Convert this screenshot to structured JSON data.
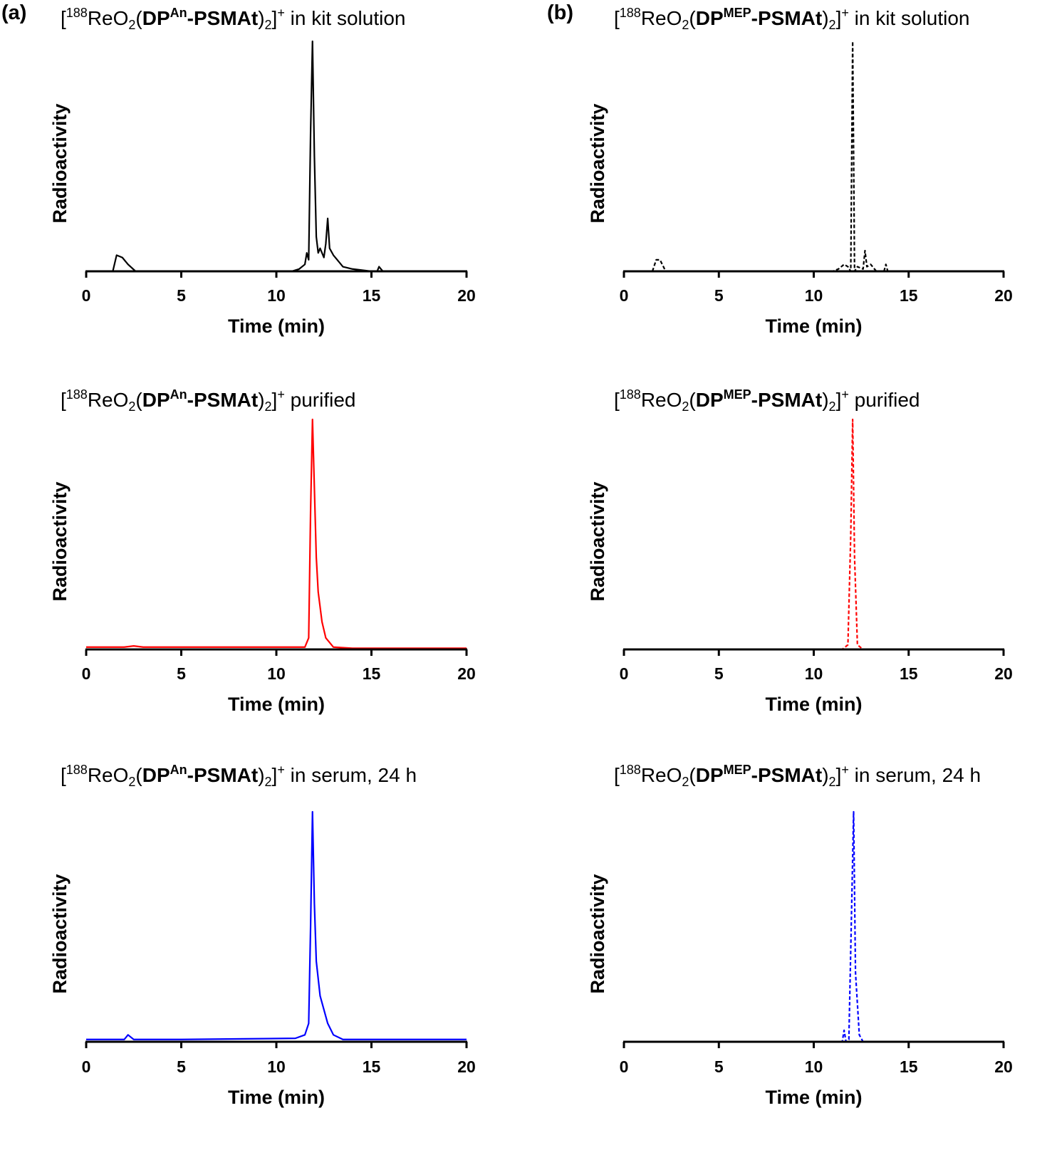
{
  "figure": {
    "panel_labels": [
      "(a)",
      "(b)"
    ]
  },
  "chart_data": [
    {
      "type": "line",
      "title": [
        "[",
        "188",
        "ReO",
        "2",
        "(",
        "DP",
        "An",
        "-PSMAt",
        ")",
        "2",
        "]",
        "+",
        " in kit solution"
      ],
      "x_label": "Time (min)",
      "y_label": "Radioactivity",
      "xlim": [
        0,
        20
      ],
      "xticks": [
        0,
        5,
        10,
        15,
        20
      ],
      "ylim": [
        0,
        100
      ],
      "color": "#000000",
      "line_style": "solid",
      "x": [
        0,
        1.4,
        1.6,
        1.9,
        2.2,
        2.6,
        3,
        10.8,
        11.2,
        11.5,
        11.6,
        11.7,
        11.8,
        11.9,
        12.0,
        12.1,
        12.2,
        12.3,
        12.5,
        12.6,
        12.7,
        12.8,
        13.0,
        13.2,
        13.5,
        14,
        14.5,
        15,
        15.3,
        15.4,
        15.6,
        16,
        20
      ],
      "values": [
        0,
        0,
        7,
        6,
        3,
        0,
        0,
        0,
        1,
        3,
        8,
        5,
        60,
        100,
        50,
        15,
        8,
        10,
        6,
        12,
        23,
        10,
        7,
        5,
        2,
        1,
        0.5,
        0,
        0,
        2,
        0,
        0,
        0
      ]
    },
    {
      "type": "line",
      "title": [
        "[",
        "188",
        "ReO",
        "2",
        "(",
        "DP",
        "An",
        "-PSMAt",
        ")",
        "2",
        "]",
        "+",
        " purified"
      ],
      "x_label": "Time (min)",
      "y_label": "Radioactivity",
      "xlim": [
        0,
        20
      ],
      "xticks": [
        0,
        5,
        10,
        15,
        20
      ],
      "ylim": [
        0,
        100
      ],
      "color": "#ff0000",
      "line_style": "solid",
      "x": [
        0,
        2,
        2.5,
        3,
        11.5,
        11.7,
        11.8,
        11.9,
        12.0,
        12.1,
        12.2,
        12.4,
        12.6,
        13,
        14,
        20
      ],
      "values": [
        1,
        1,
        1.5,
        1,
        1,
        5,
        60,
        100,
        70,
        40,
        25,
        12,
        5,
        1,
        0.5,
        0.5
      ]
    },
    {
      "type": "line",
      "title": [
        "[",
        "188",
        "ReO",
        "2",
        "(",
        "DP",
        "An",
        "-PSMAt",
        ")",
        "2",
        "]",
        "+",
        " in serum, 24 h"
      ],
      "x_label": "Time (min)",
      "y_label": "Radioactivity",
      "xlim": [
        0,
        20
      ],
      "xticks": [
        0,
        5,
        10,
        15,
        20
      ],
      "ylim": [
        0,
        100
      ],
      "color": "#0000ff",
      "line_style": "solid",
      "x": [
        0,
        2,
        2.2,
        2.5,
        5,
        11,
        11.5,
        11.7,
        11.8,
        11.9,
        12.0,
        12.1,
        12.3,
        12.5,
        12.7,
        13,
        13.5,
        15,
        20
      ],
      "values": [
        1,
        1,
        3,
        1,
        1,
        1.5,
        3,
        8,
        50,
        100,
        60,
        35,
        20,
        14,
        8,
        3,
        1,
        1,
        1
      ]
    },
    {
      "type": "line",
      "title": [
        "[",
        "188",
        "ReO",
        "2",
        "(",
        "DP",
        "MEP",
        "-PSMAt",
        ")",
        "2",
        "]",
        "+",
        " in kit solution"
      ],
      "x_label": "Time (min)",
      "y_label": "Radioactivity",
      "xlim": [
        0,
        20
      ],
      "xticks": [
        0,
        5,
        10,
        15,
        20
      ],
      "ylim": [
        0,
        100
      ],
      "color": "#000000",
      "line_style": "dashed",
      "x": [
        0,
        1.5,
        1.7,
        1.9,
        2.2,
        11,
        11.3,
        11.6,
        11.8,
        11.95,
        12.05,
        12.15,
        12.3,
        12.6,
        12.7,
        12.8,
        13,
        13.3,
        13.7,
        13.8,
        13.9,
        20
      ],
      "values": [
        0,
        0,
        5,
        5,
        0,
        0,
        1,
        3,
        2,
        0,
        100,
        0,
        2,
        1,
        9,
        2,
        3,
        0,
        0,
        3,
        0,
        0
      ]
    },
    {
      "type": "line",
      "title": [
        "[",
        "188",
        "ReO",
        "2",
        "(",
        "DP",
        "MEP",
        "-PSMAt",
        ")",
        "2",
        "]",
        "+",
        " purified"
      ],
      "x_label": "Time (min)",
      "y_label": "Radioactivity",
      "xlim": [
        0,
        20
      ],
      "xticks": [
        0,
        5,
        10,
        15,
        20
      ],
      "ylim": [
        0,
        100
      ],
      "color": "#ff0000",
      "line_style": "dashed",
      "x": [
        0,
        11.5,
        11.8,
        11.95,
        12.05,
        12.15,
        12.3,
        12.6,
        20
      ],
      "values": [
        0,
        0,
        2,
        50,
        100,
        40,
        2,
        0,
        0
      ]
    },
    {
      "type": "line",
      "title": [
        "[",
        "188",
        "ReO",
        "2",
        "(",
        "DP",
        "MEP",
        "-PSMAt",
        ")",
        "2",
        "]",
        "+",
        " in serum, 24 h"
      ],
      "x_label": "Time (min)",
      "y_label": "Radioactivity",
      "xlim": [
        0,
        20
      ],
      "xticks": [
        0,
        5,
        10,
        15,
        20
      ],
      "ylim": [
        0,
        100
      ],
      "color": "#0000ff",
      "line_style": "dashed",
      "x": [
        0,
        11.5,
        11.6,
        11.7,
        11.85,
        12.0,
        12.1,
        12.2,
        12.4,
        12.6,
        20
      ],
      "values": [
        0,
        0,
        5,
        0,
        1,
        60,
        100,
        30,
        3,
        0,
        0
      ]
    }
  ]
}
